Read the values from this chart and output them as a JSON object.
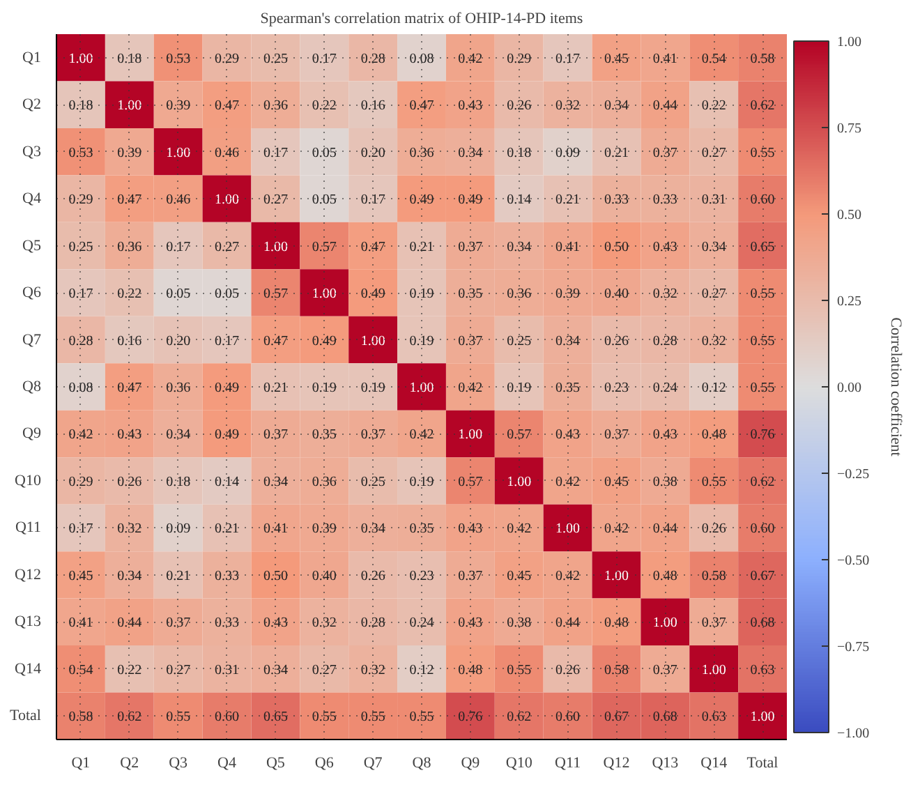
{
  "chart_data": {
    "type": "heatmap",
    "title": "Spearman's correlation matrix of OHIP-14-PD items",
    "clabel": "Correlation coefficient",
    "categories": [
      "Q1",
      "Q2",
      "Q3",
      "Q4",
      "Q5",
      "Q6",
      "Q7",
      "Q8",
      "Q9",
      "Q10",
      "Q11",
      "Q12",
      "Q13",
      "Q14",
      "Total"
    ],
    "y_categories": [
      "Q1",
      "Q2",
      "Q3",
      "Q4",
      "Q5",
      "Q6",
      "Q7",
      "Q8",
      "Q9",
      "Q10",
      "Q11",
      "Q12",
      "Q13",
      "Q14",
      "Total"
    ],
    "cells": [
      [
        1.0,
        0.18,
        0.53,
        0.29,
        0.25,
        0.17,
        0.28,
        0.08,
        0.42,
        0.29,
        0.17,
        0.45,
        0.41,
        0.54,
        0.58
      ],
      [
        0.18,
        1.0,
        0.39,
        0.47,
        0.36,
        0.22,
        0.16,
        0.47,
        0.43,
        0.26,
        0.32,
        0.34,
        0.44,
        0.22,
        0.62
      ],
      [
        0.53,
        0.39,
        1.0,
        0.46,
        0.17,
        0.05,
        0.2,
        0.36,
        0.34,
        0.18,
        0.09,
        0.21,
        0.37,
        0.27,
        0.55
      ],
      [
        0.29,
        0.47,
        0.46,
        1.0,
        0.27,
        0.05,
        0.17,
        0.49,
        0.49,
        0.14,
        0.21,
        0.33,
        0.33,
        0.31,
        0.6
      ],
      [
        0.25,
        0.36,
        0.17,
        0.27,
        1.0,
        0.57,
        0.47,
        0.21,
        0.37,
        0.34,
        0.41,
        0.5,
        0.43,
        0.34,
        0.65
      ],
      [
        0.17,
        0.22,
        0.05,
        0.05,
        0.57,
        1.0,
        0.49,
        0.19,
        0.35,
        0.36,
        0.39,
        0.4,
        0.32,
        0.27,
        0.55
      ],
      [
        0.28,
        0.16,
        0.2,
        0.17,
        0.47,
        0.49,
        1.0,
        0.19,
        0.37,
        0.25,
        0.34,
        0.26,
        0.28,
        0.32,
        0.55
      ],
      [
        0.08,
        0.47,
        0.36,
        0.49,
        0.21,
        0.19,
        0.19,
        1.0,
        0.42,
        0.19,
        0.35,
        0.23,
        0.24,
        0.12,
        0.55
      ],
      [
        0.42,
        0.43,
        0.34,
        0.49,
        0.37,
        0.35,
        0.37,
        0.42,
        1.0,
        0.57,
        0.43,
        0.37,
        0.43,
        0.48,
        0.76
      ],
      [
        0.29,
        0.26,
        0.18,
        0.14,
        0.34,
        0.36,
        0.25,
        0.19,
        0.57,
        1.0,
        0.42,
        0.45,
        0.38,
        0.55,
        0.62
      ],
      [
        0.17,
        0.32,
        0.09,
        0.21,
        0.41,
        0.39,
        0.34,
        0.35,
        0.43,
        0.42,
        1.0,
        0.42,
        0.44,
        0.26,
        0.6
      ],
      [
        0.45,
        0.34,
        0.21,
        0.33,
        0.5,
        0.4,
        0.26,
        0.23,
        0.37,
        0.45,
        0.42,
        1.0,
        0.48,
        0.58,
        0.67
      ],
      [
        0.41,
        0.44,
        0.37,
        0.33,
        0.43,
        0.32,
        0.28,
        0.24,
        0.43,
        0.38,
        0.44,
        0.48,
        1.0,
        0.37,
        0.68
      ],
      [
        0.54,
        0.22,
        0.27,
        0.31,
        0.34,
        0.27,
        0.32,
        0.12,
        0.48,
        0.55,
        0.26,
        0.58,
        0.37,
        1.0,
        0.63
      ],
      [
        0.58,
        0.62,
        0.55,
        0.6,
        0.65,
        0.55,
        0.55,
        0.55,
        0.76,
        0.62,
        0.6,
        0.67,
        0.68,
        0.63,
        1.0
      ]
    ],
    "cell_labels": [
      [
        "1.00",
        "0.18",
        "0.53",
        "0.29",
        "0.25",
        "0.17",
        "0.28",
        "0.08",
        "0.42",
        "0.29",
        "0.17",
        "0.45",
        "0.41",
        "0.54",
        "0.58"
      ],
      [
        "0.18",
        "1.00",
        "0.39",
        "0.47",
        "0.36",
        "0.22",
        "0.16",
        "0.47",
        "0.43",
        "0.26",
        "0.32",
        "0.34",
        "0.44",
        "0.22",
        "0.62"
      ],
      [
        "0.53",
        "0.39",
        "1.00",
        "0.46",
        "0.17",
        "0.05",
        "0.20",
        "0.36",
        "0.34",
        "0.18",
        "0.09",
        "0.21",
        "0.37",
        "0.27",
        "0.55"
      ],
      [
        "0.29",
        "0.47",
        "0.46",
        "1.00",
        "0.27",
        "0.05",
        "0.17",
        "0.49",
        "0.49",
        "0.14",
        "0.21",
        "0.33",
        "0.33",
        "0.31",
        "0.60"
      ],
      [
        "0.25",
        "0.36",
        "0.17",
        "0.27",
        "1.00",
        "0.57",
        "0.47",
        "0.21",
        "0.37",
        "0.34",
        "0.41",
        "0.50",
        "0.43",
        "0.34",
        "0.65"
      ],
      [
        "0.17",
        "0.22",
        "0.05",
        "0.05",
        "0.57",
        "1.00",
        "0.49",
        "0.19",
        "0.35",
        "0.36",
        "0.39",
        "0.40",
        "0.32",
        "0.27",
        "0.55"
      ],
      [
        "0.28",
        "0.16",
        "0.20",
        "0.17",
        "0.47",
        "0.49",
        "1.00",
        "0.19",
        "0.37",
        "0.25",
        "0.34",
        "0.26",
        "0.28",
        "0.32",
        "0.55"
      ],
      [
        "0.08",
        "0.47",
        "0.36",
        "0.49",
        "0.21",
        "0.19",
        "0.19",
        "1.00",
        "0.42",
        "0.19",
        "0.35",
        "0.23",
        "0.24",
        "0.12",
        "0.55"
      ],
      [
        "0.42",
        "0.43",
        "0.34",
        "0.49",
        "0.37",
        "0.35",
        "0.37",
        "0.42",
        "1.00",
        "0.57",
        "0.43",
        "0.37",
        "0.43",
        "0.48",
        "0.76"
      ],
      [
        "0.29",
        "0.26",
        "0.18",
        "0.14",
        "0.34",
        "0.36",
        "0.25",
        "0.19",
        "0.57",
        "1.00",
        "0.42",
        "0.45",
        "0.38",
        "0.55",
        "0.62"
      ],
      [
        "0.17",
        "0.32",
        "0.09",
        "0.21",
        "0.41",
        "0.39",
        "0.34",
        "0.35",
        "0.43",
        "0.42",
        "1.00",
        "0.42",
        "0.44",
        "0.26",
        "0.60"
      ],
      [
        "0.45",
        "0.34",
        "0.21",
        "0.33",
        "0.50",
        "0.40",
        "0.26",
        "0.23",
        "0.37",
        "0.45",
        "0.42",
        "1.00",
        "0.48",
        "0.58",
        "0.67"
      ],
      [
        "0.41",
        "0.44",
        "0.37",
        "0.33",
        "0.43",
        "0.32",
        "0.28",
        "0.24",
        "0.43",
        "0.38",
        "0.44",
        "0.48",
        "1.00",
        "0.37",
        "0.68"
      ],
      [
        "0.54",
        "0.22",
        "0.27",
        "0.31",
        "0.34",
        "0.27",
        "0.32",
        "0.12",
        "0.48",
        "0.55",
        "0.26",
        "0.58",
        "0.37",
        "1.00",
        "0.63"
      ],
      [
        "0.58",
        "0.62",
        "0.55",
        "0.60",
        "0.65",
        "0.55",
        "0.55",
        "0.55",
        "0.76",
        "0.62",
        "0.60",
        "0.67",
        "0.68",
        "0.63",
        "1.00"
      ]
    ],
    "clim": [
      -1.0,
      1.0
    ],
    "cticks": [
      {
        "value": -1.0,
        "label": "−1.00"
      },
      {
        "value": -0.75,
        "label": "−0.75"
      },
      {
        "value": -0.5,
        "label": "−0.50"
      },
      {
        "value": -0.25,
        "label": "−0.25"
      },
      {
        "value": 0.0,
        "label": "0.00"
      },
      {
        "value": 0.25,
        "label": "0.25"
      },
      {
        "value": 0.5,
        "label": "0.50"
      },
      {
        "value": 0.75,
        "label": "0.75"
      },
      {
        "value": 1.0,
        "label": "1.00"
      }
    ],
    "grid": true
  }
}
